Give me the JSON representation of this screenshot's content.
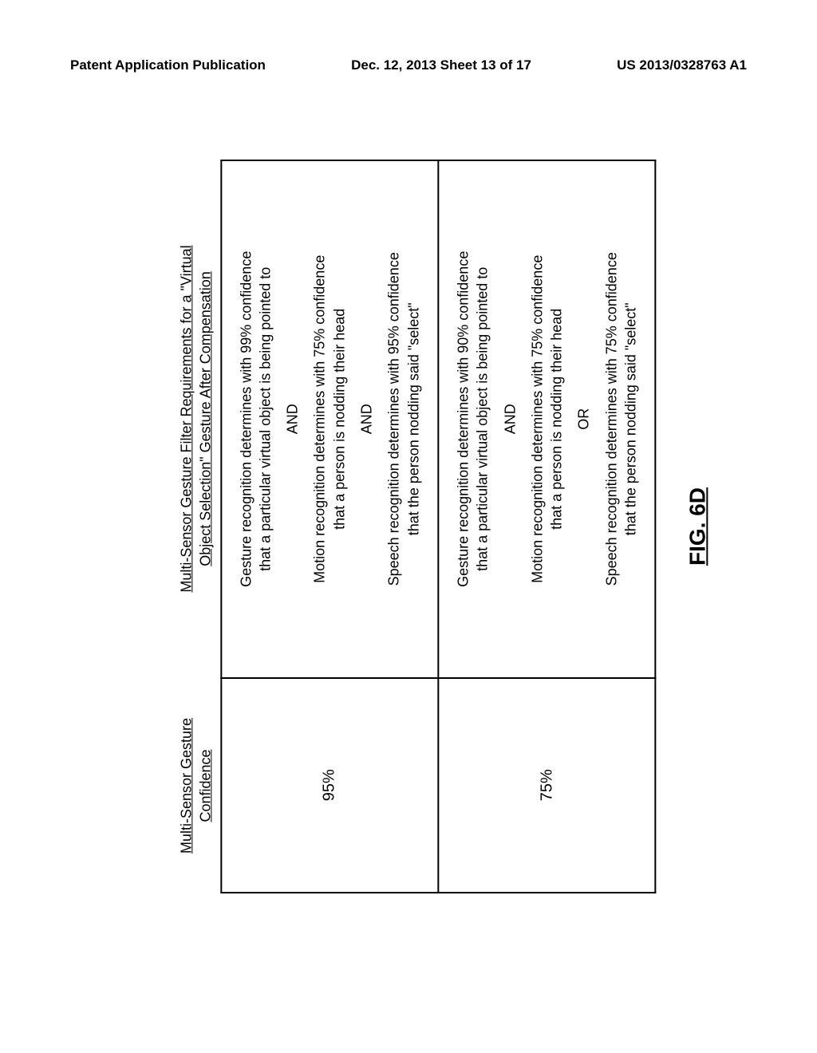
{
  "header": {
    "left": "Patent Application Publication",
    "center": "Dec. 12, 2013  Sheet 13 of 17",
    "right": "US 2013/0328763 A1"
  },
  "table": {
    "col1_header": "Multi-Sensor Gesture Confidence",
    "col2_header_line1": "Multi-Sensor Gesture Filter Requirements for a \"Virtual",
    "col2_header_line2": "Object Selection\" Gesture After Compensation",
    "rows": [
      {
        "confidence": "95%",
        "r1_l1": "Gesture recognition determines with 99% confidence",
        "r1_l2": "that a particular virtual object is being pointed to",
        "op1": "AND",
        "r2_l1": "Motion recognition determines with 75% confidence",
        "r2_l2": "that a person is nodding their head",
        "op2": "AND",
        "r3_l1": "Speech recognition determines with 95% confidence",
        "r3_l2": "that the person nodding said \"select\""
      },
      {
        "confidence": "75%",
        "r1_l1": "Gesture recognition determines with 90% confidence",
        "r1_l2": "that a particular virtual object is being pointed to",
        "op1": "AND",
        "r2_l1": "Motion recognition determines with 75% confidence",
        "r2_l2": "that a person is nodding their head",
        "op2": "OR",
        "r3_l1": "Speech recognition determines with 75% confidence",
        "r3_l2": "that the person nodding said \"select\""
      }
    ]
  },
  "figure_label": "FIG. 6D",
  "colors": {
    "text": "#000000",
    "border": "#000000",
    "background": "#ffffff"
  },
  "fonts": {
    "header_size": 17,
    "col_header_size": 18,
    "cell_size": 18,
    "conf_size": 20,
    "fig_size": 28
  }
}
